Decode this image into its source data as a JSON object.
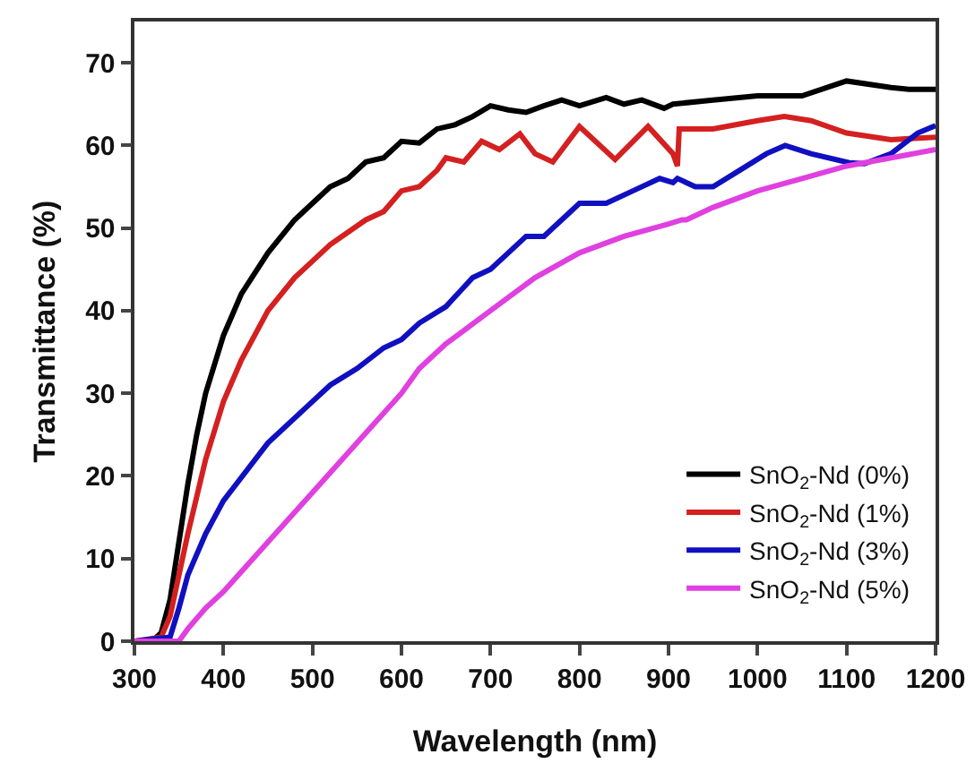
{
  "chart_data": {
    "type": "line",
    "xlabel": "Wavelength (nm)",
    "ylabel": "Transmittance (%)",
    "xlim": [
      300,
      1200
    ],
    "xticks": [
      300,
      400,
      500,
      600,
      700,
      800,
      900,
      1000,
      1100,
      1200
    ],
    "ylim": [
      0,
      75
    ],
    "yticks": [
      0,
      10,
      20,
      30,
      40,
      50,
      60,
      70
    ],
    "grid": false,
    "legend": "bottom right",
    "marker": "none",
    "line_style": "solid",
    "series": [
      {
        "name": "SnO$_{2}$-Nd (0%)",
        "color": "#000000",
        "x": [
          300,
          320,
          330,
          340,
          350,
          360,
          370,
          380,
          400,
          420,
          450,
          480,
          500,
          520,
          540,
          560,
          580,
          600,
          620,
          640,
          660,
          680,
          700,
          720,
          740,
          760,
          780,
          800,
          830,
          850,
          870,
          895,
          905,
          950,
          1000,
          1050,
          1100,
          1150,
          1170,
          1200
        ],
        "values": [
          0,
          0,
          1,
          5,
          12,
          19,
          25,
          30,
          37,
          42,
          47,
          51,
          53,
          55,
          56,
          58,
          58.5,
          60.5,
          60.3,
          62,
          62.5,
          63.5,
          64.8,
          64.3,
          64,
          64.8,
          65.5,
          64.8,
          65.8,
          65,
          65.5,
          64.5,
          65,
          65.5,
          66,
          66,
          67.8,
          67,
          66.8,
          66.8
        ]
      },
      {
        "name": "SnO$_{2}$-Nd (1%)",
        "color": "#d42020",
        "x": [
          300,
          330,
          340,
          350,
          360,
          380,
          400,
          420,
          450,
          480,
          500,
          520,
          540,
          560,
          580,
          600,
          620,
          640,
          650,
          670,
          690,
          710,
          733,
          750,
          770,
          800,
          840,
          877,
          905,
          910,
          912,
          950,
          1000,
          1030,
          1060,
          1100,
          1150,
          1200
        ],
        "values": [
          0,
          0.5,
          3,
          8,
          13,
          22,
          29,
          34,
          40,
          44,
          46,
          48,
          49.5,
          51,
          52,
          54.5,
          55,
          57,
          58.5,
          58,
          60.5,
          59.5,
          61.4,
          59,
          58,
          62.3,
          58.3,
          62.3,
          59,
          57.5,
          62,
          62,
          63,
          63.5,
          63,
          61.5,
          60.7,
          61
        ]
      },
      {
        "name": "SnO$_{2}$-Nd (3%)",
        "color": "#1010c0",
        "x": [
          300,
          340,
          350,
          360,
          380,
          400,
          450,
          500,
          520,
          550,
          580,
          600,
          620,
          650,
          680,
          700,
          720,
          740,
          760,
          780,
          800,
          830,
          860,
          890,
          905,
          910,
          930,
          950,
          980,
          1010,
          1031,
          1060,
          1103,
          1120,
          1150,
          1180,
          1200
        ],
        "values": [
          0,
          0.5,
          4,
          8,
          13,
          17,
          24,
          29,
          31,
          33,
          35.5,
          36.5,
          38.5,
          40.5,
          44,
          45,
          47,
          49,
          49,
          51,
          53,
          53,
          54.5,
          56,
          55.5,
          56,
          55,
          55,
          57,
          59,
          60,
          59,
          57.9,
          57.8,
          59,
          61.5,
          62.4
        ]
      },
      {
        "name": "SnO$_{2}$-Nd (5%)",
        "color": "#e040e0",
        "x": [
          300,
          350,
          360,
          380,
          400,
          450,
          500,
          550,
          600,
          620,
          650,
          700,
          750,
          800,
          850,
          900,
          915,
          920,
          950,
          1000,
          1050,
          1100,
          1150,
          1200
        ],
        "values": [
          0,
          0,
          1.5,
          4,
          6,
          12,
          18,
          24,
          30,
          33,
          36,
          40,
          44,
          47,
          49,
          50.5,
          51,
          51,
          52.5,
          54.5,
          56,
          57.5,
          58.5,
          59.5
        ]
      }
    ]
  }
}
